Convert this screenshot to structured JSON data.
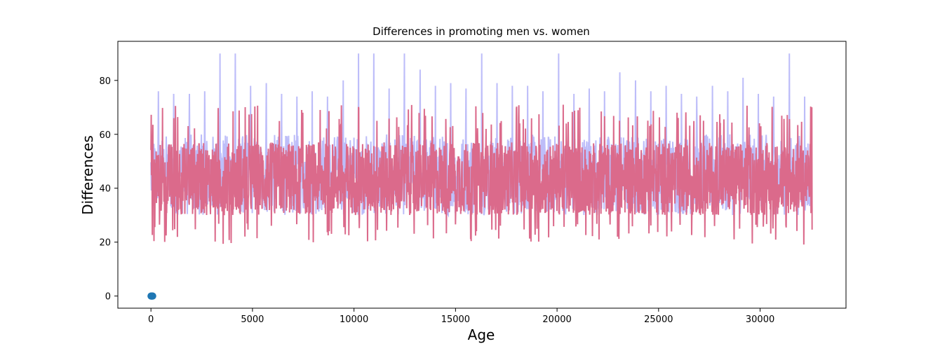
{
  "chart_data": {
    "type": "line",
    "title": "Differences in promoting men vs. women",
    "xlabel": "Age",
    "ylabel": "Differences",
    "xlim": [
      -1630,
      34230
    ],
    "ylim": [
      -4.5,
      94.5
    ],
    "xticks": [
      0,
      5000,
      10000,
      15000,
      20000,
      25000,
      30000
    ],
    "yticks": [
      0,
      20,
      40,
      60,
      80
    ],
    "grid": false,
    "legend": "none",
    "series": [
      {
        "type": "line",
        "color": "#bdbdf9",
        "x_range": [
          0,
          32560
        ],
        "typical_range": [
          30,
          60
        ],
        "peak_values": [
          76,
          75,
          75,
          76,
          90,
          90,
          78,
          79,
          75,
          74,
          76,
          74,
          80,
          90,
          90,
          77,
          90,
          84,
          78,
          79,
          77,
          90,
          79,
          78,
          78,
          76,
          90,
          75,
          77,
          76,
          83,
          80,
          76,
          78,
          75,
          74,
          78,
          76,
          81,
          75,
          74,
          90,
          74
        ]
      },
      {
        "type": "line",
        "color": "#db6a8b",
        "x_range": [
          0,
          32560
        ],
        "typical_range": [
          30,
          57
        ],
        "min_value": 19,
        "max_value": 71,
        "mean_value": 42
      },
      {
        "type": "scatter",
        "color": "#1f77b4",
        "x": [
          0,
          10,
          20,
          30,
          40,
          50,
          60,
          70,
          80,
          90
        ],
        "y": [
          0,
          0,
          0,
          0,
          0,
          0,
          0,
          0,
          0,
          0
        ]
      }
    ]
  }
}
